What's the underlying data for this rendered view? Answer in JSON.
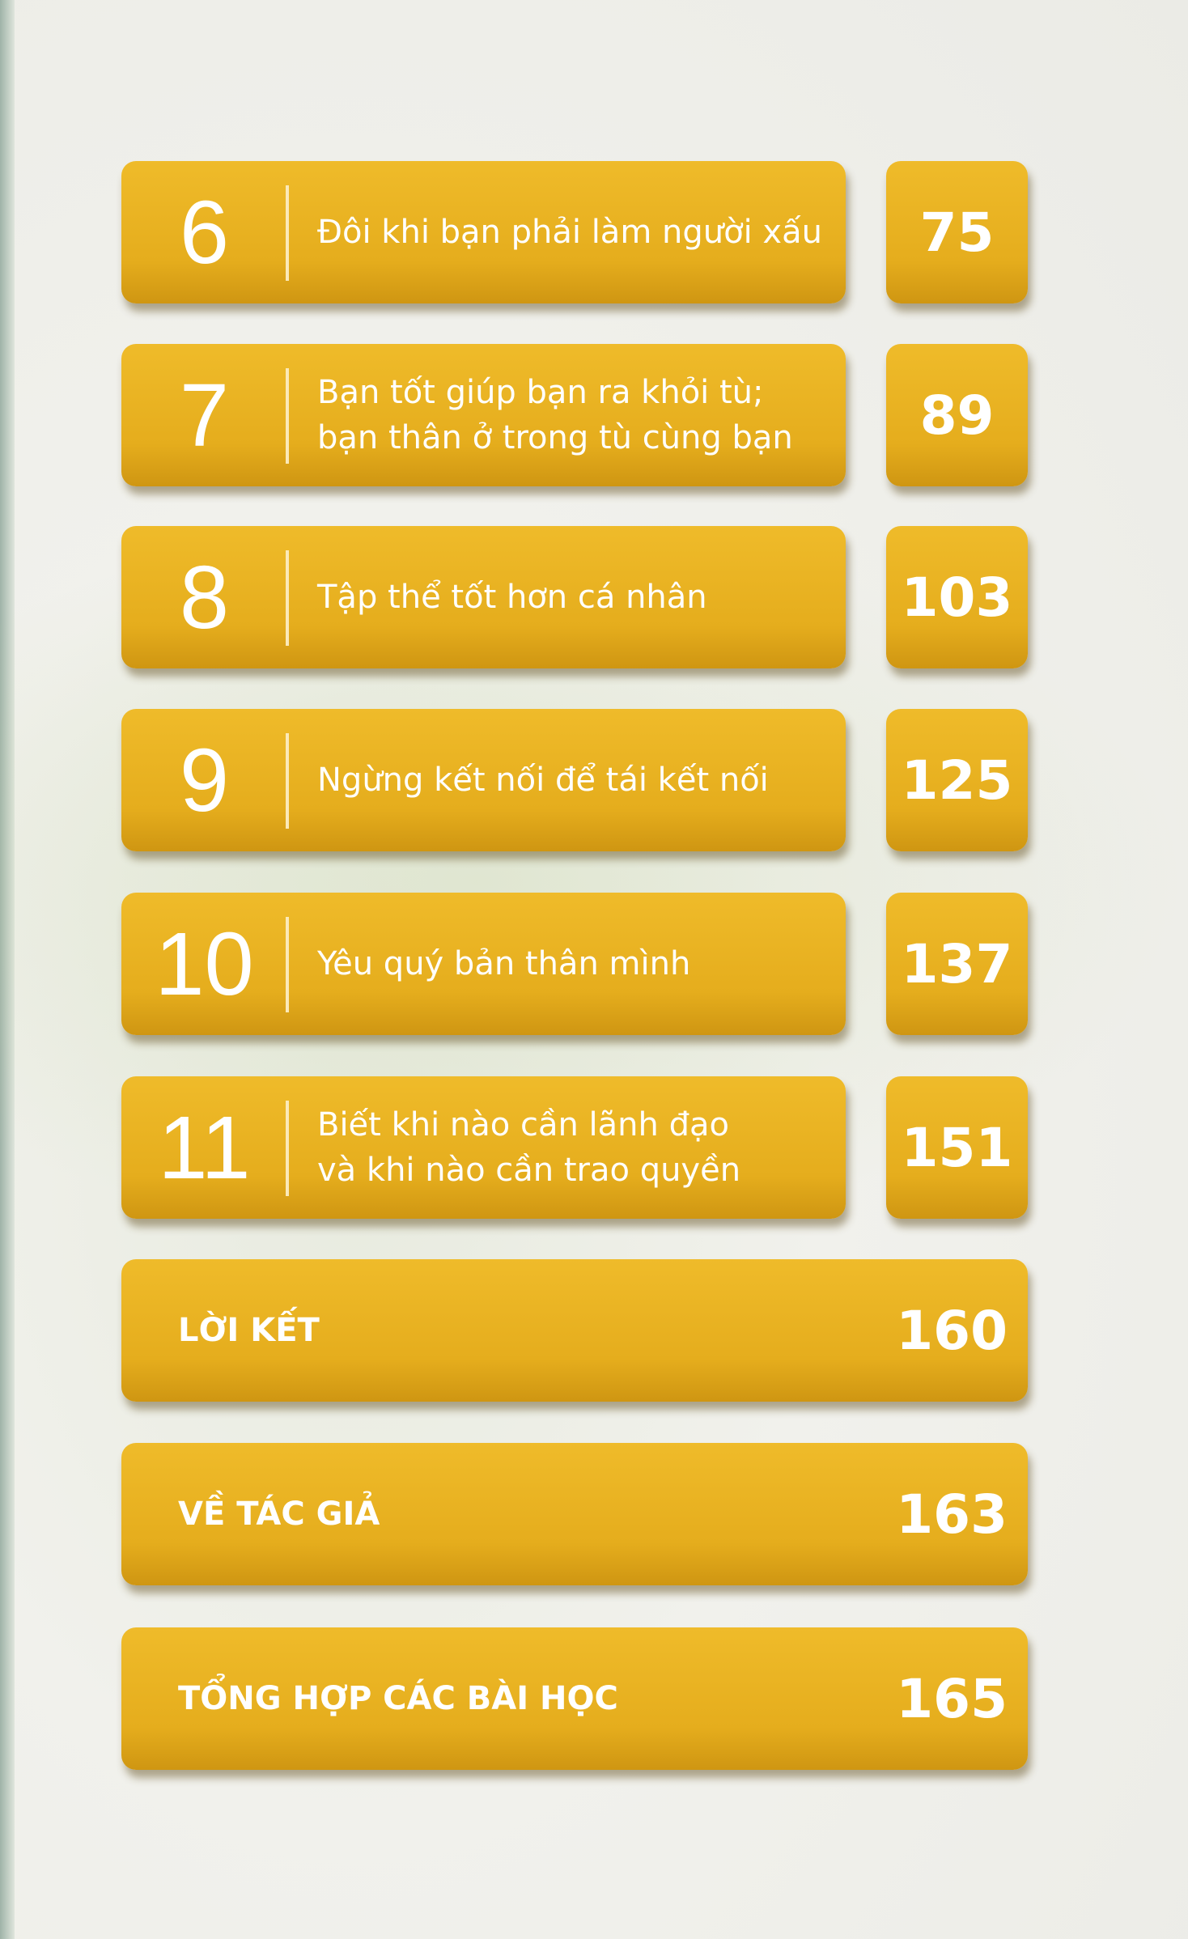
{
  "chapters": [
    {
      "number": "6",
      "title": "Đôi khi bạn phải làm người xấu",
      "page": "75"
    },
    {
      "number": "7",
      "title": "Bạn tốt giúp bạn ra khỏi tù;\nbạn thân ở trong tù cùng bạn",
      "page": "89"
    },
    {
      "number": "8",
      "title": "Tập thể tốt hơn cá nhân",
      "page": "103"
    },
    {
      "number": "9",
      "title": "Ngừng kết nối để tái kết nối",
      "page": "125"
    },
    {
      "number": "10",
      "title": "Yêu quý bản thân mình",
      "page": "137"
    },
    {
      "number": "11",
      "title": "Biết khi nào cần lãnh đạo\nvà khi nào cần trao quyền",
      "page": "151"
    }
  ],
  "sections": [
    {
      "title": "LỜI KẾT",
      "page": "160"
    },
    {
      "title": "VỀ TÁC GIẢ",
      "page": "163"
    },
    {
      "title": "TỔNG HỢP CÁC BÀI HỌC",
      "page": "165"
    }
  ],
  "colors": {
    "bar": "#e5ad1d",
    "text": "#ffffff"
  }
}
